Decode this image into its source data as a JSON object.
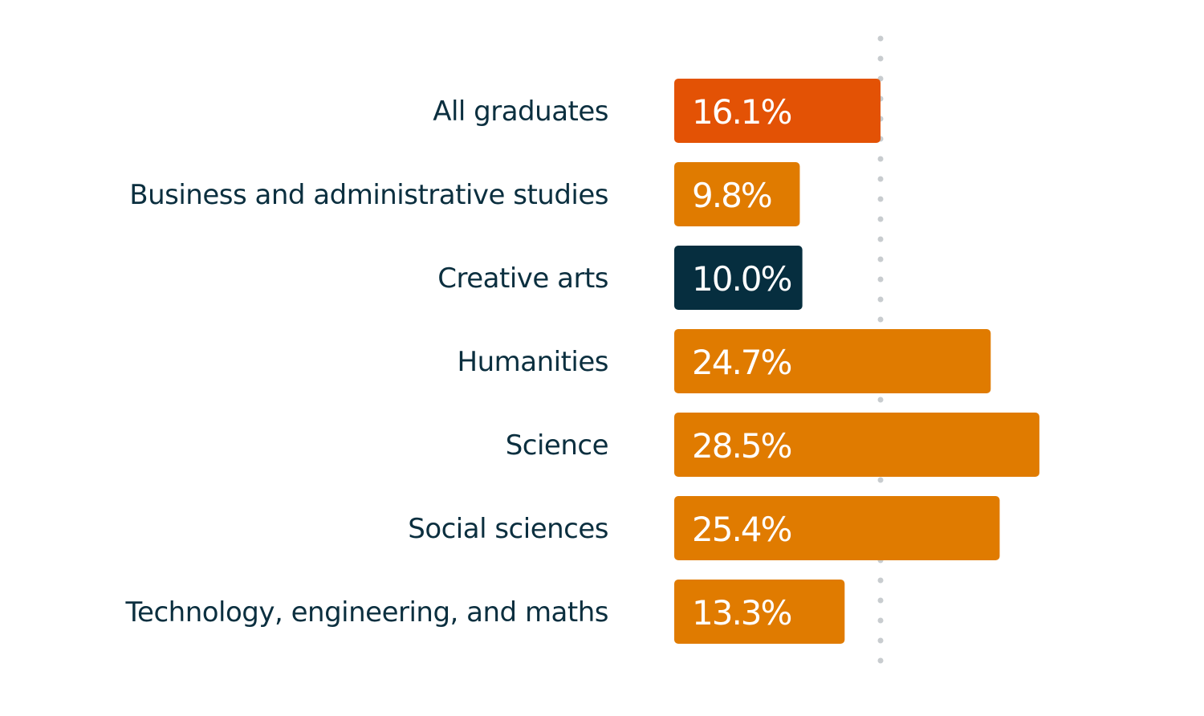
{
  "chart_data": {
    "type": "bar",
    "orientation": "horizontal",
    "categories": [
      "All graduates",
      "Business and administrative studies",
      "Creative arts",
      "Humanities",
      "Science",
      "Social sciences",
      "Technology, engineering, and maths"
    ],
    "values": [
      16.1,
      9.8,
      10.0,
      24.7,
      28.5,
      25.4,
      13.3
    ],
    "labels": [
      "16.1%",
      "9.8%",
      "10.0%",
      "24.7%",
      "28.5%",
      "25.4%",
      "13.3%"
    ],
    "colors": [
      "#E35205",
      "#E07B00",
      "#062E3F",
      "#E07B00",
      "#E07B00",
      "#E07B00",
      "#E07B00"
    ],
    "reference_line": {
      "value": 16.1,
      "style": "dotted",
      "color": "#C8CCCF"
    },
    "grid": false,
    "legend": "none",
    "xlim": [
      0,
      28.5
    ]
  }
}
